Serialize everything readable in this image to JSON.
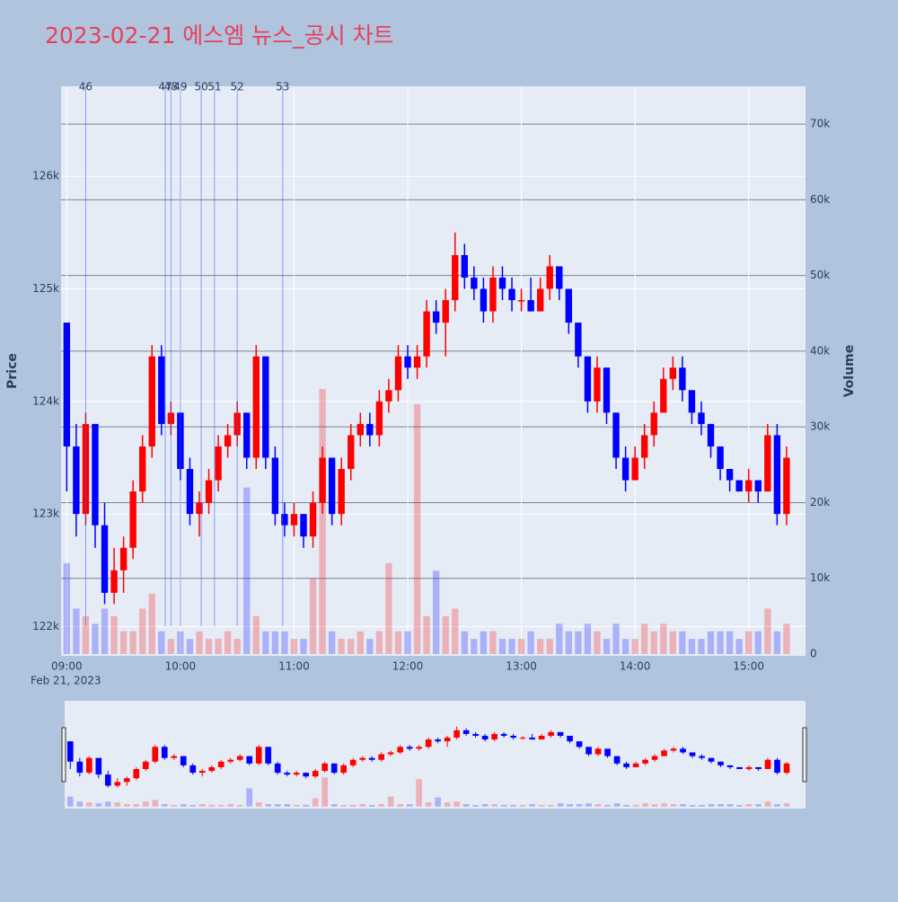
{
  "chart_data": {
    "type": "candlestick",
    "title": "2023-02-21 에스엠 뉴스_공시 차트",
    "ylabel": "Price",
    "y2label": "Volume",
    "x_date_label": "Feb 21, 2023",
    "increasing_color": "#ff0000",
    "decreasing_color": "#0000ff",
    "x": [
      "09:00",
      "09:05",
      "09:10",
      "09:15",
      "09:20",
      "09:25",
      "09:30",
      "09:35",
      "09:40",
      "09:45",
      "09:50",
      "09:55",
      "10:00",
      "10:05",
      "10:10",
      "10:15",
      "10:20",
      "10:25",
      "10:30",
      "10:35",
      "10:40",
      "10:45",
      "10:50",
      "10:55",
      "11:00",
      "11:05",
      "11:10",
      "11:15",
      "11:20",
      "11:25",
      "11:30",
      "11:35",
      "11:40",
      "11:45",
      "11:50",
      "11:55",
      "12:00",
      "12:05",
      "12:10",
      "12:15",
      "12:20",
      "12:25",
      "12:30",
      "12:35",
      "12:40",
      "12:45",
      "12:50",
      "12:55",
      "13:00",
      "13:05",
      "13:10",
      "13:15",
      "13:20",
      "13:25",
      "13:30",
      "13:35",
      "13:40",
      "13:45",
      "13:50",
      "13:55",
      "14:00",
      "14:05",
      "14:10",
      "14:15",
      "14:20",
      "14:25",
      "14:30",
      "14:35",
      "14:40",
      "14:45",
      "14:50",
      "14:55",
      "15:00",
      "15:05",
      "15:10",
      "15:15",
      "15:20"
    ],
    "open": [
      124700,
      123600,
      123000,
      123800,
      122900,
      122300,
      122500,
      122700,
      123200,
      123600,
      124400,
      123800,
      123900,
      123400,
      123000,
      123100,
      123300,
      123600,
      123700,
      123900,
      123500,
      124400,
      123500,
      123000,
      122900,
      123000,
      122800,
      123100,
      123500,
      123000,
      123400,
      123700,
      123800,
      123700,
      124000,
      124100,
      124400,
      124300,
      124400,
      124800,
      124700,
      124900,
      125300,
      125100,
      125000,
      124800,
      125100,
      125000,
      124900,
      124900,
      124800,
      125000,
      125200,
      125000,
      124700,
      124400,
      124000,
      124300,
      123900,
      123500,
      123300,
      123500,
      123700,
      123900,
      124200,
      124300,
      124100,
      123900,
      123800,
      123600,
      123400,
      123300,
      123200,
      123300,
      123200,
      123700,
      123000
    ],
    "high": [
      124700,
      123800,
      123900,
      123800,
      123100,
      122700,
      122800,
      123300,
      123700,
      124500,
      124500,
      124000,
      123900,
      123500,
      123200,
      123400,
      123700,
      123800,
      124000,
      123900,
      124500,
      124400,
      123600,
      123100,
      123100,
      123000,
      123200,
      123600,
      123500,
      123500,
      123800,
      123900,
      123900,
      124100,
      124200,
      124500,
      124500,
      124500,
      124900,
      124900,
      125000,
      125500,
      125400,
      125200,
      125100,
      125200,
      125200,
      125100,
      125000,
      125100,
      125100,
      125300,
      125200,
      125000,
      124700,
      124400,
      124400,
      124300,
      123900,
      123600,
      123600,
      123800,
      124000,
      124300,
      124400,
      124400,
      124100,
      124000,
      123800,
      123600,
      123400,
      123300,
      123400,
      123300,
      123800,
      123800,
      123600
    ],
    "low": [
      123200,
      122800,
      122900,
      122700,
      122200,
      122200,
      122300,
      122600,
      123100,
      123500,
      123700,
      123700,
      123300,
      122900,
      122800,
      123000,
      123200,
      123500,
      123600,
      123400,
      123400,
      123400,
      122900,
      122800,
      122800,
      122700,
      122700,
      123000,
      122900,
      122900,
      123300,
      123600,
      123600,
      123600,
      123900,
      124000,
      124200,
      124200,
      124300,
      124600,
      124400,
      124800,
      125000,
      124900,
      124700,
      124700,
      124900,
      124800,
      124800,
      124800,
      124800,
      124900,
      124900,
      124600,
      124300,
      123900,
      123900,
      123800,
      123400,
      123200,
      123300,
      123400,
      123600,
      123900,
      124100,
      124000,
      123800,
      123700,
      123500,
      123300,
      123200,
      123200,
      123100,
      123100,
      123200,
      122900,
      122900
    ],
    "close": [
      123600,
      123000,
      123800,
      122900,
      122300,
      122500,
      122700,
      123200,
      123600,
      124400,
      123800,
      123900,
      123400,
      123000,
      123100,
      123300,
      123600,
      123700,
      123900,
      123500,
      124400,
      123500,
      123000,
      122900,
      123000,
      122800,
      123100,
      123500,
      123000,
      123400,
      123700,
      123800,
      123700,
      124000,
      124100,
      124400,
      124300,
      124400,
      124800,
      124700,
      124900,
      125300,
      125100,
      125000,
      124800,
      125100,
      125000,
      124900,
      124900,
      124800,
      125000,
      125200,
      125000,
      124700,
      124400,
      124000,
      124300,
      123900,
      123500,
      123300,
      123500,
      123700,
      123900,
      124200,
      124300,
      124100,
      123900,
      123800,
      123600,
      123400,
      123300,
      123200,
      123300,
      123200,
      123700,
      123000,
      123500
    ],
    "volume": [
      12000,
      6000,
      5000,
      4000,
      6000,
      5000,
      3000,
      3000,
      6000,
      8000,
      3000,
      2000,
      3000,
      2000,
      3000,
      2000,
      2000,
      3000,
      2000,
      22000,
      5000,
      3000,
      3000,
      3000,
      2000,
      2000,
      10000,
      35000,
      3000,
      2000,
      2000,
      3000,
      2000,
      3000,
      12000,
      3000,
      3000,
      33000,
      5000,
      11000,
      5000,
      6000,
      3000,
      2000,
      3000,
      3000,
      2000,
      2000,
      2000,
      3000,
      2000,
      2000,
      4000,
      3000,
      3000,
      4000,
      3000,
      2000,
      4000,
      2000,
      2000,
      4000,
      3000,
      4000,
      3000,
      3000,
      2000,
      2000,
      3000,
      3000,
      3000,
      2000,
      3000,
      3000,
      6000,
      3000,
      4000
    ],
    "xlim": [
      "08:57",
      "15:30"
    ],
    "xticks": [
      "09:00",
      "10:00",
      "11:00",
      "12:00",
      "13:00",
      "14:00",
      "15:00"
    ],
    "ylim": [
      121740,
      126800
    ],
    "yticks": [
      {
        "value": 122000,
        "label": "122k"
      },
      {
        "value": 123000,
        "label": "123k"
      },
      {
        "value": 124000,
        "label": "124k"
      },
      {
        "value": 125000,
        "label": "125k"
      },
      {
        "value": 126000,
        "label": "126k"
      }
    ],
    "y2lim": [
      -240,
      75000
    ],
    "y2ticks": [
      0,
      {
        "value": 10000,
        "label": "10k"
      },
      {
        "value": 20000,
        "label": "20k"
      },
      {
        "value": 30000,
        "label": "30k"
      },
      {
        "value": 40000,
        "label": "40k"
      },
      {
        "value": 50000,
        "label": "50k"
      },
      {
        "value": 60000,
        "label": "60k"
      },
      {
        "value": 70000,
        "label": "70k"
      }
    ],
    "annotations": [
      {
        "x": "09:10",
        "text": "46"
      },
      {
        "x": "09:52",
        "text": "47"
      },
      {
        "x": "09:55",
        "text": "48"
      },
      {
        "x": "10:00",
        "text": "49"
      },
      {
        "x": "10:11",
        "text": "50"
      },
      {
        "x": "10:18",
        "text": "51"
      },
      {
        "x": "10:30",
        "text": "52"
      },
      {
        "x": "10:54",
        "text": "53"
      }
    ],
    "rangeslider": true
  }
}
